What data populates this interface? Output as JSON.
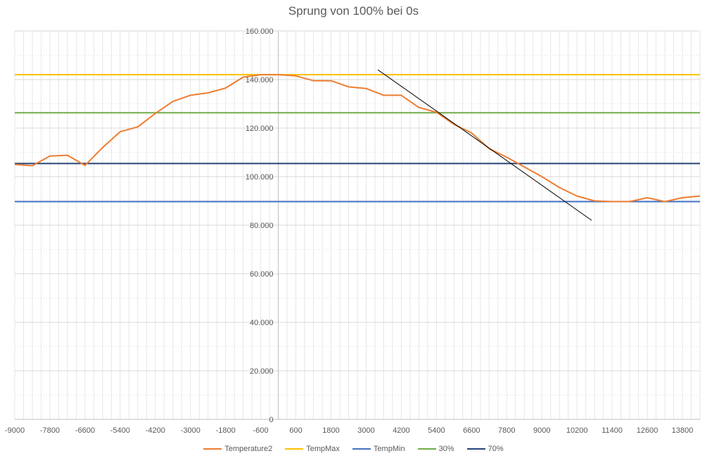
{
  "chart_data": {
    "type": "line",
    "title": "Sprung von 100% bei 0s",
    "xlabel": "",
    "ylabel": "",
    "xlim": [
      -9000,
      14400
    ],
    "ylim": [
      0,
      160
    ],
    "x_ticks": [
      -9000,
      -7800,
      -6600,
      -5400,
      -4200,
      -3000,
      -1800,
      -600,
      600,
      1800,
      3000,
      4200,
      5400,
      6600,
      7800,
      9000,
      10200,
      11400,
      12600,
      13800
    ],
    "y_ticks": [
      0,
      20,
      40,
      60,
      80,
      100,
      120,
      140,
      160
    ],
    "y_tick_labels": [
      "0",
      "20.000",
      "40.000",
      "60.000",
      "80.000",
      "100.000",
      "120.000",
      "140.000",
      "160.000"
    ],
    "grid": true,
    "legend_position": "bottom",
    "series": [
      {
        "name": "Temperature2",
        "color": "#ED7D31",
        "x": [
          -9000,
          -8400,
          -7800,
          -7200,
          -6600,
          -6000,
          -5400,
          -4800,
          -4200,
          -3600,
          -3000,
          -2400,
          -1800,
          -1200,
          -600,
          0,
          600,
          1200,
          1800,
          2400,
          3000,
          3600,
          4200,
          4800,
          5400,
          6000,
          6600,
          7200,
          7800,
          8400,
          9000,
          9600,
          10200,
          10800,
          11400,
          12000,
          12600,
          13200,
          13800,
          14400
        ],
        "values": [
          105,
          104.5,
          108.5,
          108.8,
          104.6,
          112,
          118.5,
          120.5,
          126,
          131,
          133.5,
          134.5,
          136.5,
          141,
          142,
          142,
          141.5,
          139.5,
          139.5,
          137,
          136.3,
          133.5,
          133.5,
          128.5,
          126.5,
          121.5,
          118,
          111.5,
          108,
          104,
          100,
          95.5,
          92,
          90,
          89.7,
          89.7,
          91.3,
          89.7,
          91.3,
          92
        ]
      },
      {
        "name": "TempMax",
        "color": "#FFC000",
        "constant": 142
      },
      {
        "name": "TempMin",
        "color": "#4472C4",
        "constant": 89.7
      },
      {
        "name": "30%",
        "color": "#70AD47",
        "constant": 126.3
      },
      {
        "name": "70%",
        "color": "#264478",
        "constant": 105.4
      }
    ],
    "annotations": [
      {
        "type": "tangent-line",
        "color": "#000000",
        "from": [
          3400,
          144
        ],
        "to": [
          10700,
          82
        ]
      }
    ]
  }
}
